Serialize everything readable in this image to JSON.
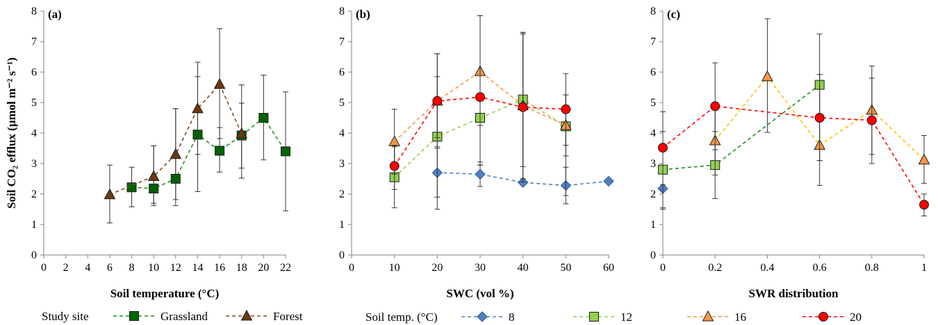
{
  "figure": {
    "y_axis_label": "Soil CO₂ efflux (µmol m⁻² s⁻¹)",
    "legends": [
      {
        "title": "Study site",
        "entries": [
          {
            "name": "Grassland",
            "marker": "square",
            "color": "#006400"
          },
          {
            "name": "Forest",
            "marker": "triangle",
            "color": "#6B3A10"
          }
        ]
      },
      {
        "title": "Soil temp. (°C)",
        "entries": [
          {
            "name": "8",
            "marker": "diamond",
            "color": "#4F81BD"
          },
          {
            "name": "12",
            "marker": "square",
            "color": "#92D050"
          },
          {
            "name": "16",
            "marker": "triangle",
            "color": "#F79646"
          },
          {
            "name": "20",
            "marker": "circle",
            "color": "#FF0000"
          }
        ]
      }
    ]
  },
  "chart_data": [
    {
      "type": "scatter",
      "panel_label": "(a)",
      "xlabel": "Soil temperature (°C)",
      "ylabel": "Soil CO₂ efflux (µmol m⁻² s⁻¹)",
      "xlim": [
        0,
        22
      ],
      "ylim": [
        0,
        8
      ],
      "xticks": [
        "0",
        "2",
        "4",
        "6",
        "8",
        "10",
        "12",
        "14",
        "16",
        "18",
        "20",
        "22"
      ],
      "yticks": [
        "0",
        "1",
        "2",
        "3",
        "4",
        "5",
        "6",
        "7",
        "8"
      ],
      "line_style": "dashed",
      "series": [
        {
          "name": "Grassland",
          "marker": "square",
          "color": "#006400",
          "line_color": "#1E8C1E",
          "x": [
            8,
            10,
            12,
            14,
            16,
            18,
            20,
            22
          ],
          "y": [
            2.22,
            2.18,
            2.5,
            3.95,
            3.42,
            3.92,
            4.5,
            3.4
          ],
          "err_low": [
            1.58,
            1.62,
            1.62,
            2.08,
            2.72,
            2.52,
            3.12,
            1.45
          ],
          "err_high": [
            2.88,
            3.58,
            4.8,
            5.85,
            4.18,
            4.98,
            5.9,
            5.35
          ]
        },
        {
          "name": "Forest",
          "marker": "triangle",
          "color": "#6B3A10",
          "line_color": "#7A4A20",
          "x": [
            6,
            10,
            12,
            14,
            16,
            18
          ],
          "y": [
            1.98,
            2.58,
            3.3,
            4.8,
            5.6,
            3.98
          ],
          "err_low": [
            1.05,
            1.7,
            1.82,
            3.3,
            3.82,
            2.85
          ],
          "err_high": [
            2.95,
            3.58,
            4.8,
            6.32,
            7.42,
            5.58
          ]
        }
      ]
    },
    {
      "type": "scatter",
      "panel_label": "(b)",
      "xlabel": "SWC (vol %)",
      "xlim": [
        0,
        60
      ],
      "ylim": [
        0,
        8
      ],
      "xticks": [
        "0",
        "10",
        "20",
        "30",
        "40",
        "50",
        "60"
      ],
      "yticks": [
        "0",
        "1",
        "2",
        "3",
        "4",
        "5",
        "6",
        "7",
        "8"
      ],
      "line_style": "dashed",
      "series": [
        {
          "name": "8",
          "marker": "diamond",
          "color": "#4F81BD",
          "line_color": "#4F81BD",
          "x": [
            20,
            30,
            40,
            50,
            60
          ],
          "y": [
            2.7,
            2.65,
            2.38,
            2.28,
            2.42
          ],
          "err_low": [
            1.5,
            2.25,
            2.3,
            1.68,
            2.42
          ],
          "err_high": [
            3.55,
            3.05,
            2.45,
            2.88,
            2.42
          ]
        },
        {
          "name": "12",
          "marker": "square",
          "color": "#92D050",
          "line_color": "#92D050",
          "x": [
            10,
            20,
            30,
            40,
            50
          ],
          "y": [
            2.55,
            3.88,
            4.5,
            5.1,
            4.22
          ],
          "err_low": [
            1.55,
            1.9,
            2.95,
            2.9,
            1.95
          ],
          "err_high": [
            3.55,
            5.85,
            6.05,
            7.25,
            5.25
          ]
        },
        {
          "name": "16",
          "marker": "triangle",
          "color": "#F79646",
          "line_color": "#F79646",
          "x": [
            10,
            20,
            30,
            40,
            50
          ],
          "y": [
            3.72,
            5.05,
            6.02,
            4.9,
            4.25
          ],
          "err_low": [
            2.65,
            3.5,
            4.25,
            2.5,
            3.25
          ],
          "err_high": [
            4.78,
            6.6,
            7.85,
            7.3,
            5.25
          ]
        },
        {
          "name": "20",
          "marker": "circle",
          "color": "#FF0000",
          "line_color": "#FF0000",
          "x": [
            10,
            20,
            30,
            40,
            50
          ],
          "y": [
            2.92,
            5.05,
            5.18,
            4.85,
            4.78
          ],
          "err_low": [
            2.15,
            3.85,
            2.95,
            2.4,
            3.6
          ],
          "err_high": [
            3.6,
            6.6,
            7.85,
            7.3,
            5.95
          ]
        }
      ]
    },
    {
      "type": "scatter",
      "panel_label": "(c)",
      "xlabel": "SWR distribution",
      "xlim": [
        0,
        1
      ],
      "ylim": [
        0,
        8
      ],
      "xticks": [
        "0",
        "0.2",
        "0.4",
        "0.6",
        "0.8",
        "1"
      ],
      "yticks": [
        "0",
        "1",
        "2",
        "3",
        "4",
        "5",
        "6",
        "7",
        "8"
      ],
      "line_style": "dashed",
      "series": [
        {
          "name": "8",
          "marker": "diamond",
          "color": "#4F81BD",
          "line_color": "#4F81BD",
          "x": [
            0
          ],
          "y": [
            2.18
          ],
          "err_low": [
            1.5
          ],
          "err_high": [
            2.85
          ]
        },
        {
          "name": "12",
          "marker": "square",
          "color": "#92D050",
          "line_color": "#1E8C1E",
          "x": [
            0,
            0.2,
            0.6
          ],
          "y": [
            2.8,
            2.95,
            5.58
          ],
          "err_low": [
            1.55,
            1.85,
            2.28
          ],
          "err_high": [
            4.05,
            4.05,
            7.25
          ]
        },
        {
          "name": "16",
          "marker": "triangle",
          "color": "#F79646",
          "line_color": "#FFC000",
          "x": [
            0.2,
            0.4,
            0.6,
            0.8,
            1
          ],
          "y": [
            3.75,
            5.85,
            3.6,
            4.75,
            3.12
          ],
          "err_low": [
            2.62,
            4.02,
            3.1,
            3.3,
            2.35
          ],
          "err_high": [
            4.88,
            7.75,
            5.92,
            6.2,
            3.92
          ]
        },
        {
          "name": "20",
          "marker": "circle",
          "color": "#FF0000",
          "line_color": "#FF0000",
          "x": [
            0,
            0.2,
            0.6,
            0.8,
            1
          ],
          "y": [
            3.52,
            4.88,
            4.5,
            4.42,
            1.65
          ],
          "err_low": [
            2.3,
            3.45,
            3.1,
            3.0,
            1.28
          ],
          "err_high": [
            4.7,
            6.3,
            5.92,
            5.8,
            2.0
          ]
        }
      ]
    }
  ]
}
